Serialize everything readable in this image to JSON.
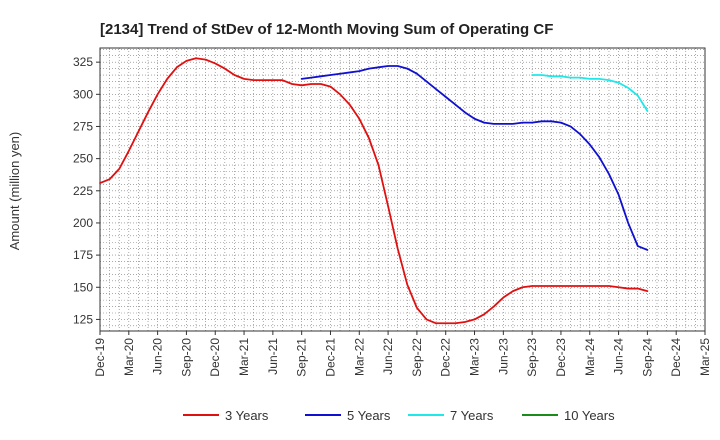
{
  "chart_data": {
    "type": "line",
    "title": "[2134]  Trend of StDev of 12-Month Moving Sum of Operating CF",
    "xlabel": "",
    "ylabel": "Amount (million yen)",
    "ylim": [
      116,
      336
    ],
    "yticks": [
      125,
      150,
      175,
      200,
      225,
      250,
      275,
      300,
      325
    ],
    "xticks": [
      "Dec-19",
      "Mar-20",
      "Jun-20",
      "Sep-20",
      "Dec-20",
      "Mar-21",
      "Jun-21",
      "Sep-21",
      "Dec-21",
      "Mar-22",
      "Jun-22",
      "Sep-22",
      "Dec-22",
      "Mar-23",
      "Jun-23",
      "Sep-23",
      "Dec-23",
      "Mar-24",
      "Jun-24",
      "Sep-24",
      "Dec-24",
      "Mar-25"
    ],
    "x_unit": "months from Dec-19",
    "xlim": [
      0,
      63
    ],
    "grid": true,
    "legend_position": "bottom",
    "series": [
      {
        "name": "3 Years",
        "color": "#e01010",
        "x": [
          0,
          1,
          2,
          3,
          4,
          5,
          6,
          7,
          8,
          9,
          10,
          11,
          12,
          13,
          14,
          15,
          16,
          17,
          18,
          19,
          20,
          21,
          22,
          23,
          24,
          25,
          26,
          27,
          28,
          29,
          30,
          31,
          32,
          33,
          34,
          35,
          36,
          37,
          38,
          39,
          40,
          41,
          42,
          43,
          44,
          45,
          46,
          47,
          48,
          49,
          50,
          51,
          52,
          53,
          54,
          55,
          56,
          57
        ],
        "values": [
          231,
          234,
          242,
          256,
          271,
          286,
          300,
          312,
          321,
          326,
          328,
          327,
          324,
          320,
          315,
          312,
          311,
          311,
          311,
          311,
          308,
          307,
          308,
          308,
          306,
          300,
          292,
          281,
          266,
          245,
          213,
          180,
          152,
          134,
          125,
          122,
          122,
          122,
          123,
          125,
          129,
          135,
          142,
          147,
          150,
          151,
          151,
          151,
          151,
          151,
          151,
          151,
          151,
          151,
          150,
          149,
          149,
          147
        ]
      },
      {
        "name": "5 Years",
        "color": "#1010d0",
        "x": [
          21,
          22,
          23,
          24,
          25,
          26,
          27,
          28,
          29,
          30,
          31,
          32,
          33,
          34,
          35,
          36,
          37,
          38,
          39,
          40,
          41,
          42,
          43,
          44,
          45,
          46,
          47,
          48,
          49,
          50,
          51,
          52,
          53,
          54,
          55,
          56,
          57
        ],
        "values": [
          312,
          313,
          314,
          315,
          316,
          317,
          318,
          320,
          321,
          322,
          322,
          320,
          316,
          310,
          304,
          298,
          292,
          286,
          281,
          278,
          277,
          277,
          277,
          278,
          278,
          279,
          279,
          278,
          275,
          269,
          261,
          251,
          238,
          222,
          200,
          182,
          179
        ]
      },
      {
        "name": "7 Years",
        "color": "#20e8e8",
        "x": [
          45,
          46,
          47,
          48,
          49,
          50,
          51,
          52,
          53,
          54,
          55,
          56,
          57
        ],
        "values": [
          315,
          315,
          314,
          314,
          313,
          313,
          312,
          312,
          311,
          309,
          305,
          299,
          287
        ]
      },
      {
        "name": "10 Years",
        "color": "#1a8c1a",
        "x": [],
        "values": []
      }
    ]
  }
}
